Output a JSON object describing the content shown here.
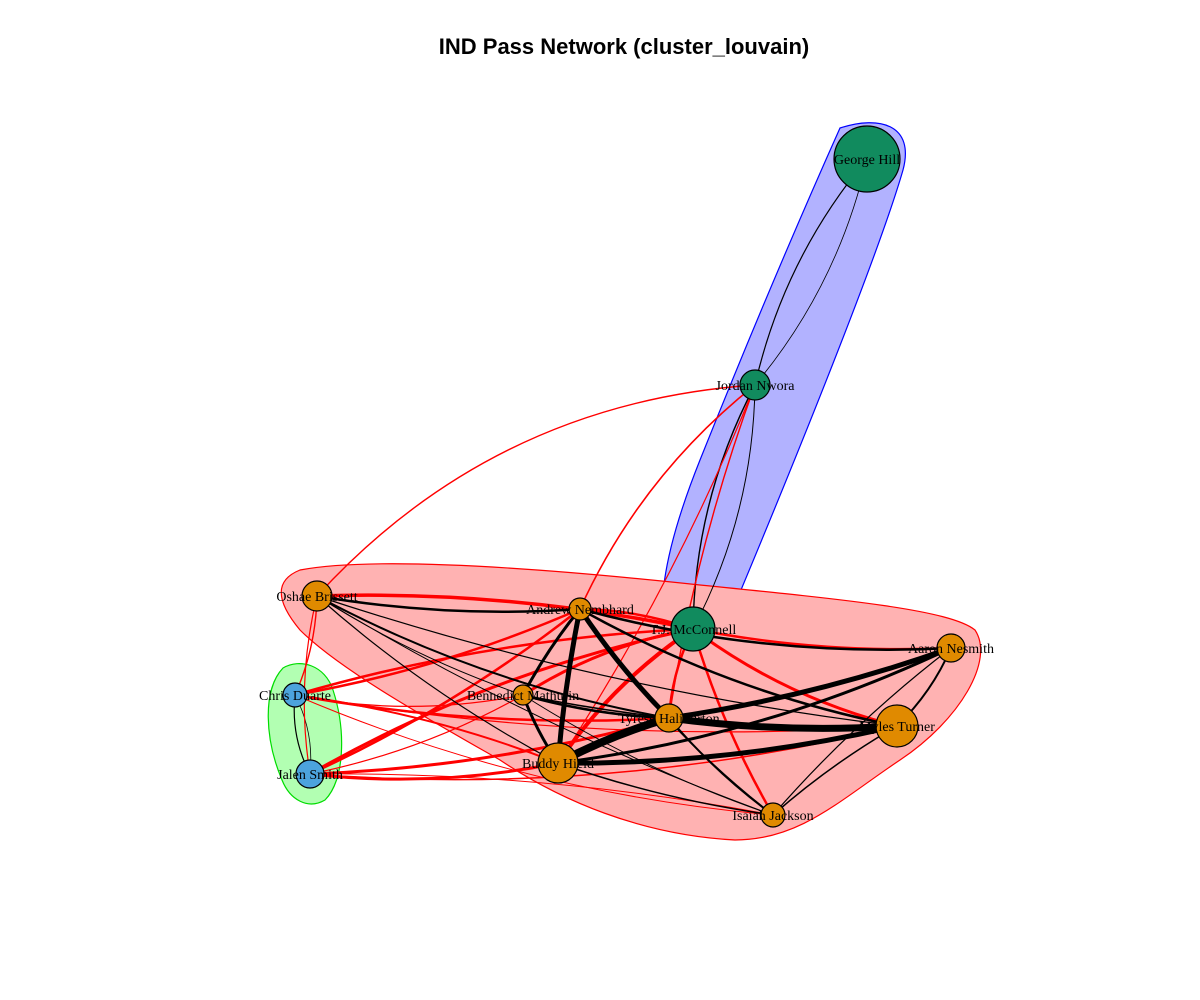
{
  "title": "IND Pass Network (cluster_louvain)",
  "colors": {
    "community_green_node": "#118B5E",
    "community_orange_node": "#E08A00",
    "community_blue_node": "#4CA3DD",
    "hull_blue_fill": "#B2B2FF",
    "hull_blue_stroke": "#0000FF",
    "hull_red_fill": "#FFB2B2",
    "hull_red_stroke": "#FF0000",
    "hull_green_fill": "#B2FFB2",
    "hull_green_stroke": "#00DD00",
    "edge_within": "#000000",
    "edge_between": "#FF0000"
  },
  "nodes": [
    {
      "id": "george-hill",
      "label": "George Hill",
      "community": "green"
    },
    {
      "id": "jordan-nwora",
      "label": "Jordan Nwora",
      "community": "green"
    },
    {
      "id": "tj-mcconnell",
      "label": "T.J. McConnell",
      "community": "green"
    },
    {
      "id": "oshae-brissett",
      "label": "Oshae Brissett",
      "community": "orange"
    },
    {
      "id": "andrew-nembhard",
      "label": "Andrew Nembhard",
      "community": "orange"
    },
    {
      "id": "aaron-nesmith",
      "label": "Aaron Nesmith",
      "community": "orange"
    },
    {
      "id": "bennedict-mathurin",
      "label": "Bennedict Mathurin",
      "community": "orange"
    },
    {
      "id": "tyrese-haliburton",
      "label": "Tyrese Haliburton",
      "community": "orange"
    },
    {
      "id": "myles-turner",
      "label": "Myles Turner",
      "community": "orange"
    },
    {
      "id": "buddy-hield",
      "label": "Buddy Hield",
      "community": "orange"
    },
    {
      "id": "isaiah-jackson",
      "label": "Isaiah Jackson",
      "community": "orange"
    },
    {
      "id": "chris-duarte",
      "label": "Chris Duarte",
      "community": "blue"
    },
    {
      "id": "jalen-smith",
      "label": "Jalen Smith",
      "community": "blue"
    }
  ]
}
